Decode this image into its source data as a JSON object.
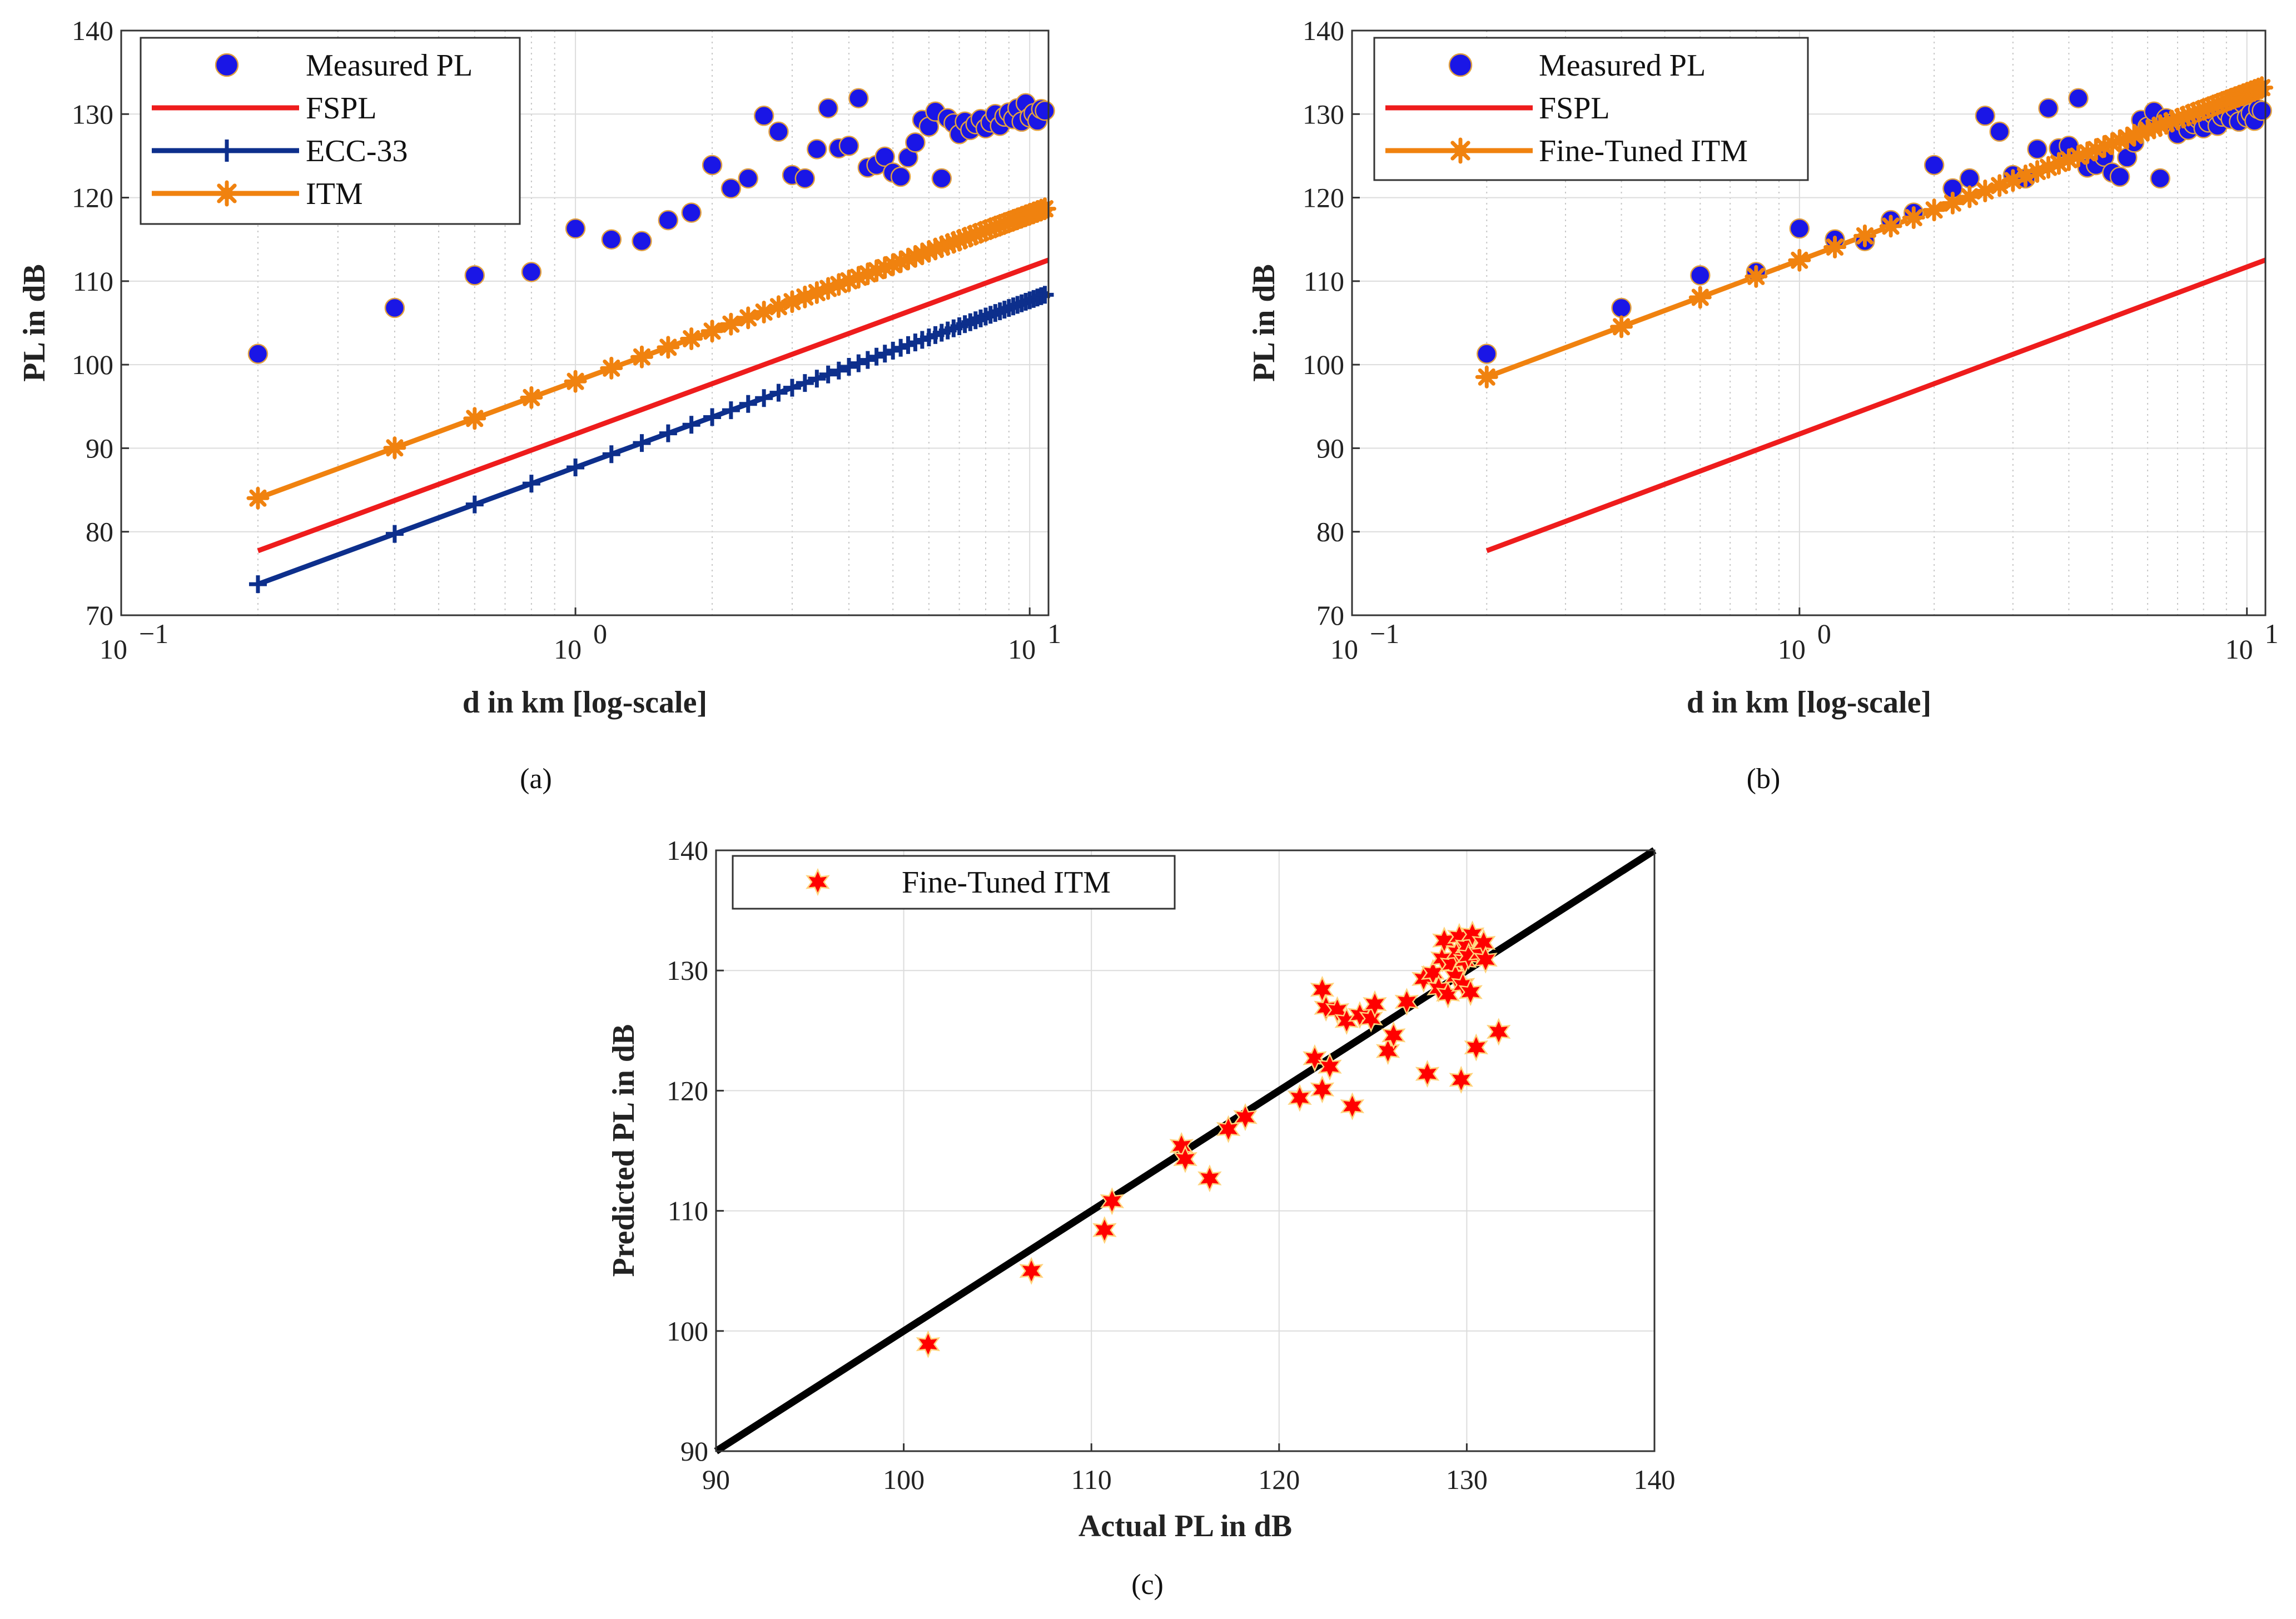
{
  "chart_data": [
    {
      "type": "scatter",
      "panel": "a",
      "caption": "(a)",
      "xlabel": "d in km [log-scale]",
      "ylabel": "PL in dB",
      "xscale": "log",
      "xlim": [
        0.1,
        11
      ],
      "ylim": [
        70,
        140
      ],
      "yticks": [
        70,
        80,
        90,
        100,
        110,
        120,
        130,
        140
      ],
      "xticks": [
        {
          "v": 0.1,
          "base": "10",
          "exp": "−1"
        },
        {
          "v": 1,
          "base": "10",
          "exp": "0"
        },
        {
          "v": 10,
          "base": "10",
          "exp": "1"
        }
      ],
      "grid": true,
      "legend_position": "top-left",
      "series": [
        {
          "name": "Measured PL",
          "kind": "measured"
        },
        {
          "name": "FSPL",
          "kind": "fspl"
        },
        {
          "name": "ECC-33",
          "kind": "ecc"
        },
        {
          "name": "ITM",
          "kind": "itm"
        }
      ]
    },
    {
      "type": "scatter",
      "panel": "b",
      "caption": "(b)",
      "xlabel": "d in km [log-scale]",
      "ylabel": "PL in dB",
      "xscale": "log",
      "xlim": [
        0.1,
        11
      ],
      "ylim": [
        70,
        140
      ],
      "yticks": [
        70,
        80,
        90,
        100,
        110,
        120,
        130,
        140
      ],
      "xticks": [
        {
          "v": 0.1,
          "base": "10",
          "exp": "−1"
        },
        {
          "v": 1,
          "base": "10",
          "exp": "0"
        },
        {
          "v": 10,
          "base": "10",
          "exp": "1"
        }
      ],
      "grid": true,
      "legend_position": "top-left",
      "series": [
        {
          "name": "Measured PL",
          "kind": "measured"
        },
        {
          "name": "FSPL",
          "kind": "fspl"
        },
        {
          "name": "Fine-Tuned ITM",
          "kind": "ftitm"
        }
      ]
    },
    {
      "type": "scatter",
      "panel": "c",
      "caption": "(c)",
      "xlabel": "Actual PL in dB",
      "ylabel": "Predicted PL in dB",
      "xlim": [
        90,
        140
      ],
      "ylim": [
        90,
        140
      ],
      "xticks": [
        90,
        100,
        110,
        120,
        130,
        140
      ],
      "yticks": [
        90,
        100,
        110,
        120,
        130,
        140
      ],
      "grid": true,
      "legend_position": "top-left",
      "series": [
        {
          "name": "Fine-Tuned ITM",
          "kind": "star"
        }
      ],
      "identity_line": [
        [
          90,
          90
        ],
        [
          140,
          140
        ]
      ],
      "points": [
        [
          101.3,
          98.9
        ],
        [
          106.8,
          105.0
        ],
        [
          110.7,
          108.4
        ],
        [
          111.1,
          110.8
        ],
        [
          114.8,
          115.4
        ],
        [
          115.0,
          114.3
        ],
        [
          116.3,
          112.7
        ],
        [
          117.3,
          116.8
        ],
        [
          118.2,
          117.8
        ],
        [
          121.1,
          119.4
        ],
        [
          121.9,
          122.7
        ],
        [
          122.3,
          128.4
        ],
        [
          122.3,
          120.1
        ],
        [
          122.5,
          126.9
        ],
        [
          122.7,
          122.0
        ],
        [
          123.1,
          126.7
        ],
        [
          123.6,
          125.8
        ],
        [
          123.9,
          118.7
        ],
        [
          124.3,
          126.3
        ],
        [
          124.9,
          126.0
        ],
        [
          125.1,
          127.2
        ],
        [
          125.8,
          123.3
        ],
        [
          126.1,
          124.6
        ],
        [
          126.8,
          127.4
        ],
        [
          127.7,
          129.3
        ],
        [
          127.9,
          121.4
        ],
        [
          128.2,
          129.8
        ],
        [
          128.5,
          128.5
        ],
        [
          128.7,
          131.0
        ],
        [
          128.8,
          132.5
        ],
        [
          129.0,
          128.0
        ],
        [
          129.2,
          130.5
        ],
        [
          129.4,
          129.5
        ],
        [
          129.5,
          131.5
        ],
        [
          129.6,
          132.8
        ],
        [
          129.7,
          120.9
        ],
        [
          129.8,
          128.8
        ],
        [
          129.9,
          130.8
        ],
        [
          130.0,
          132.0
        ],
        [
          130.1,
          131.2
        ],
        [
          130.2,
          128.2
        ],
        [
          130.3,
          133.0
        ],
        [
          130.5,
          123.6
        ],
        [
          130.7,
          131.4
        ],
        [
          130.9,
          132.3
        ],
        [
          131.0,
          130.9
        ],
        [
          131.7,
          124.9
        ]
      ]
    }
  ],
  "measured": [
    [
      0.2,
      101.3
    ],
    [
      0.4,
      106.8
    ],
    [
      0.6,
      110.7
    ],
    [
      0.8,
      111.1
    ],
    [
      1.0,
      116.3
    ],
    [
      1.2,
      115.0
    ],
    [
      1.4,
      114.8
    ],
    [
      1.6,
      117.3
    ],
    [
      1.8,
      118.2
    ],
    [
      2.0,
      123.9
    ],
    [
      2.2,
      121.1
    ],
    [
      2.4,
      122.3
    ],
    [
      2.6,
      129.8
    ],
    [
      2.8,
      127.9
    ],
    [
      3.0,
      122.7
    ],
    [
      3.2,
      122.3
    ],
    [
      3.4,
      125.8
    ],
    [
      3.6,
      130.7
    ],
    [
      3.8,
      125.9
    ],
    [
      4.0,
      126.2
    ],
    [
      4.2,
      131.9
    ],
    [
      4.4,
      123.6
    ],
    [
      4.6,
      123.9
    ],
    [
      4.8,
      124.9
    ],
    [
      5.0,
      123.0
    ],
    [
      5.2,
      122.5
    ],
    [
      5.4,
      124.8
    ],
    [
      5.6,
      126.6
    ],
    [
      5.8,
      129.3
    ],
    [
      6.0,
      128.5
    ],
    [
      6.2,
      130.3
    ],
    [
      6.4,
      122.3
    ],
    [
      6.6,
      129.5
    ],
    [
      6.8,
      128.9
    ],
    [
      7.0,
      127.6
    ],
    [
      7.2,
      129.1
    ],
    [
      7.4,
      128.1
    ],
    [
      7.6,
      128.8
    ],
    [
      7.8,
      129.4
    ],
    [
      8.0,
      128.3
    ],
    [
      8.2,
      129.0
    ],
    [
      8.4,
      130.0
    ],
    [
      8.6,
      128.6
    ],
    [
      8.8,
      129.7
    ],
    [
      9.0,
      130.2
    ],
    [
      9.2,
      129.4
    ],
    [
      9.4,
      130.7
    ],
    [
      9.6,
      129.1
    ],
    [
      9.8,
      131.3
    ],
    [
      10.0,
      129.6
    ],
    [
      10.2,
      130.1
    ],
    [
      10.4,
      129.2
    ],
    [
      10.6,
      130.6
    ],
    [
      10.8,
      130.4
    ]
  ],
  "models": {
    "fspl": {
      "a": 91.7,
      "b": 20.0,
      "dmin": 0.2,
      "dmax": 11.0
    },
    "itm": {
      "a": 98.0,
      "b": 20.0,
      "dmin": 0.2,
      "dmax": 11.0
    },
    "ecc": {
      "a": 87.7,
      "b": 20.0,
      "dmin": 0.2,
      "dmax": 11.0
    },
    "ftitm": {
      "a": 112.5,
      "b": 20.0,
      "dmin": 0.2,
      "dmax": 11.0
    }
  },
  "colors": {
    "measured_fill": "#1a16e6",
    "measured_edge": "#e0a040",
    "fspl": "#ee1c1c",
    "ecc": "#0d2f8c",
    "itm": "#f0820f",
    "star_fill": "#ff0000",
    "star_edge": "#ffd27a",
    "identity": "#000000",
    "grid_major": "#dcdcdc",
    "grid_minor": "#c6c6c6"
  }
}
